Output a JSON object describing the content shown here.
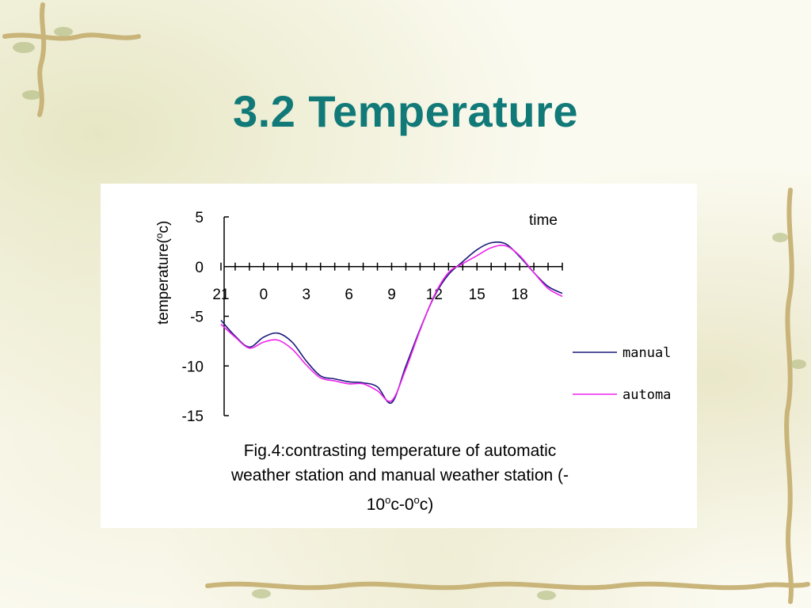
{
  "slide": {
    "title": "3.2 Temperature"
  },
  "caption": {
    "line1": "Fig.4:contrasting temperature of automatic",
    "line2": "weather station and manual weather station (-",
    "line3_a": "10",
    "line3_sup1": "o",
    "line3_b": "c-0",
    "line3_sup2": "o",
    "line3_c": "c)"
  },
  "colors": {
    "title": "#117a78",
    "manual": "#1a1a7a",
    "automa": "#ee22ee"
  },
  "chart_data": {
    "type": "line",
    "xlabel": "time",
    "ylabel": "temperature(",
    "ylabel_sup": "o",
    "ylabel_end": "c)",
    "x_tick_labels": [
      "21",
      "0",
      "3",
      "6",
      "9",
      "12",
      "15",
      "18"
    ],
    "x_tick_positions": [
      21,
      24,
      27,
      30,
      33,
      36,
      39,
      42
    ],
    "xlim": [
      21,
      45
    ],
    "y_ticks": [
      5,
      0,
      -5,
      -10,
      -15
    ],
    "ylim": [
      -15,
      5
    ],
    "grid": false,
    "legend_position": "right",
    "series": [
      {
        "name": "manual",
        "color": "#1a1a7a",
        "x": [
          21,
          22,
          23,
          24,
          25,
          26,
          27,
          28,
          29,
          30,
          31,
          32,
          33,
          34,
          35,
          36,
          37,
          38,
          39,
          40,
          41,
          42,
          43,
          44,
          45
        ],
        "values": [
          -5.4,
          -7.0,
          -8.1,
          -7.1,
          -6.7,
          -7.6,
          -9.5,
          -11.0,
          -11.3,
          -11.6,
          -11.7,
          -12.1,
          -13.7,
          -10.0,
          -6.3,
          -3.0,
          -0.8,
          0.5,
          1.7,
          2.4,
          2.3,
          1.0,
          -0.6,
          -2.0,
          -2.7
        ]
      },
      {
        "name": "automa",
        "color": "#ee22ee",
        "x": [
          21,
          22,
          23,
          24,
          25,
          26,
          27,
          28,
          29,
          30,
          31,
          32,
          33,
          34,
          35,
          36,
          37,
          38,
          39,
          40,
          41,
          42,
          43,
          44,
          45
        ],
        "values": [
          -5.8,
          -7.1,
          -8.2,
          -7.6,
          -7.4,
          -8.3,
          -9.9,
          -11.2,
          -11.5,
          -11.8,
          -11.8,
          -12.5,
          -13.5,
          -10.3,
          -6.4,
          -2.9,
          -0.6,
          0.3,
          1.1,
          1.9,
          2.1,
          1.1,
          -0.6,
          -2.2,
          -3.0
        ]
      }
    ]
  }
}
